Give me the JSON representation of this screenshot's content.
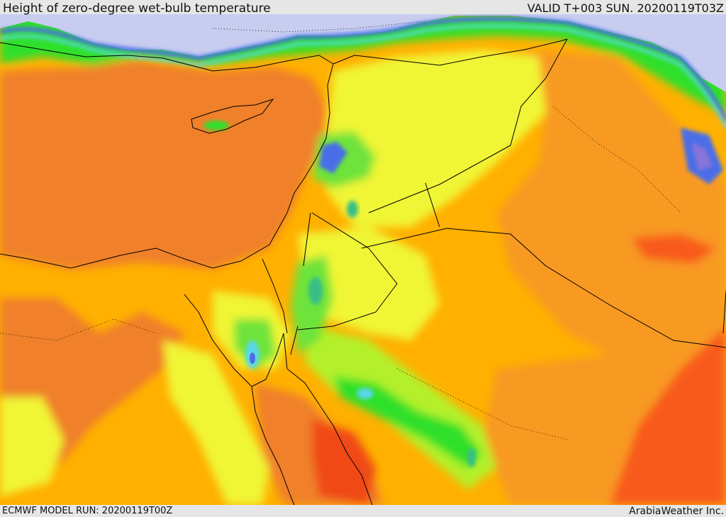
{
  "header": {
    "title": "Height of zero-degree wet-bulb temperature",
    "valid_time": "VALID T+003 SUN. 20200119T03Z"
  },
  "footer": {
    "model_run": "ECMWF MODEL RUN: 20200119T00Z",
    "credit": "ArabiaWeather Inc."
  },
  "colors": {
    "sea_background": "#c8cdf0",
    "dark_orange": "#f0802a",
    "orange": "#f89a24",
    "amber": "#ffb000",
    "yellow": "#ffdf38",
    "light_yellow": "#f0f535",
    "yellow_green": "#b4f02a",
    "green": "#6de33b",
    "bright_green": "#2ee02c",
    "teal": "#37bd86",
    "cyan": "#5ad7e8",
    "blue": "#4a6ee8",
    "purple": "#8a73d8",
    "red_orange": "#f85a1f",
    "red": "#f04a17",
    "boundary_lines": "#000000"
  }
}
